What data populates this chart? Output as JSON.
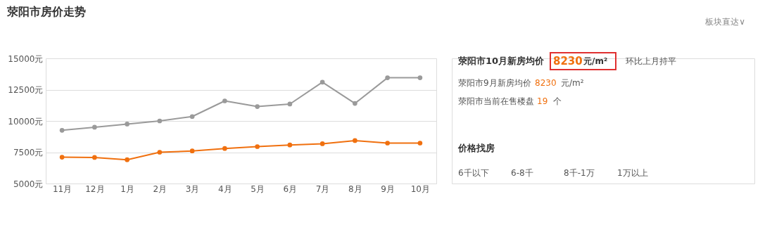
{
  "chart_data": {
    "type": "line",
    "title": "荥阳市房价走势",
    "categories": [
      "11月",
      "12月",
      "1月",
      "2月",
      "3月",
      "4月",
      "5月",
      "6月",
      "7月",
      "8月",
      "9月",
      "10月"
    ],
    "series": [
      {
        "color": "#9a9a9a",
        "values": [
          9250,
          9500,
          9750,
          10000,
          10350,
          11600,
          11150,
          11350,
          13100,
          11400,
          13450,
          13450
        ]
      },
      {
        "color": "#f0700f",
        "values": [
          7100,
          7080,
          6900,
          7500,
          7600,
          7800,
          7950,
          8080,
          8180,
          8430,
          8230,
          8230
        ]
      }
    ],
    "ylim": [
      5000,
      15000
    ],
    "yticks": [
      {
        "value": 5000,
        "label": "5000元"
      },
      {
        "value": 7500,
        "label": "7500元"
      },
      {
        "value": 10000,
        "label": "10000元"
      },
      {
        "value": 12500,
        "label": "12500元"
      },
      {
        "value": 15000,
        "label": "15000元"
      }
    ],
    "grid": "y",
    "marker": "circle",
    "line_style": "solid",
    "annotations": [
      "板块直达∨",
      "荥阳市10月新房均价",
      "8230",
      "元/m²",
      "环比上月持平",
      "荥阳市9月新房均价",
      "8230",
      "元/m²",
      "荥阳市当前在售楼盘",
      "19",
      "个",
      "价格找房",
      "6千以下",
      "6-8千",
      "8千-1万",
      "1万以上"
    ]
  }
}
